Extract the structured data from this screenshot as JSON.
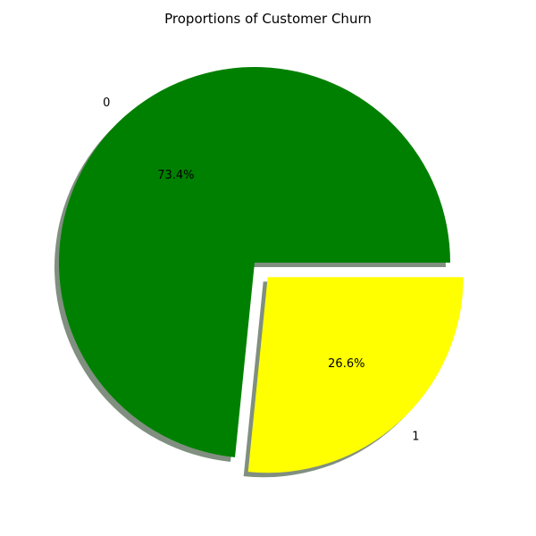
{
  "chart_data": {
    "type": "pie",
    "title": "Proportions of Customer Churn",
    "slices": [
      {
        "label": "0",
        "value": 73.4,
        "percent_label": "73.4%",
        "color": "#008000",
        "explode": 0
      },
      {
        "label": "1",
        "value": 26.6,
        "percent_label": "26.6%",
        "color": "#ffff00",
        "explode": 0.1
      }
    ],
    "start_angle_deg": 0,
    "shadow": true,
    "shadow_color": "#566a56"
  }
}
